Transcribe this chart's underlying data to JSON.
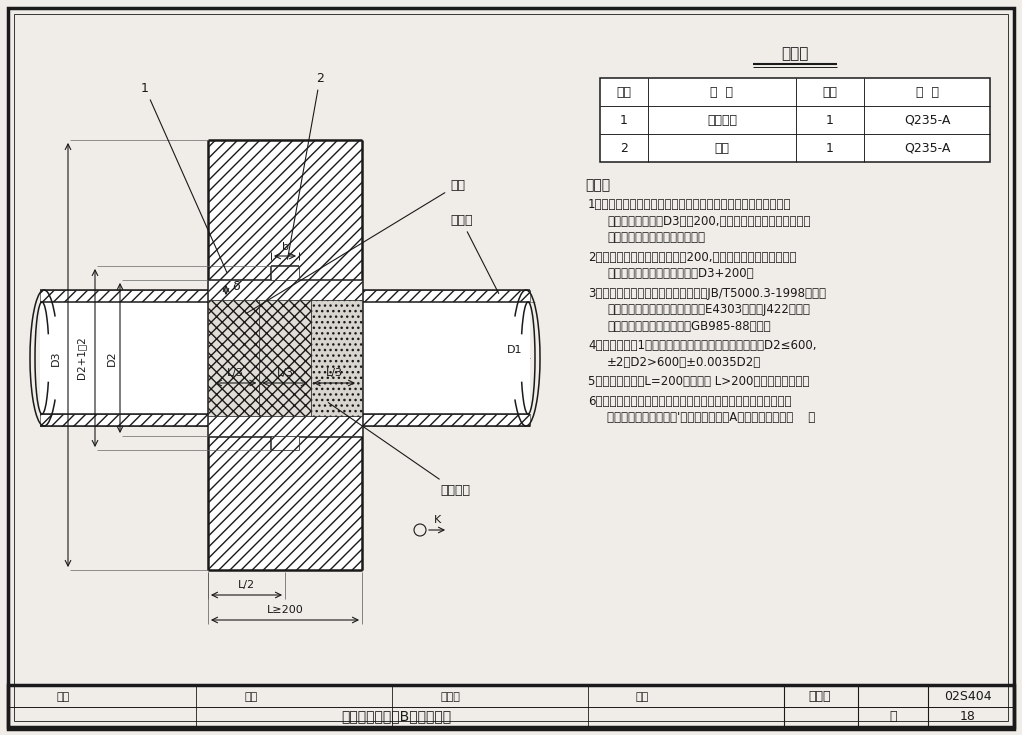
{
  "bg": "#f0ede8",
  "black": "#1a1a1a",
  "title": "刚性防水套管（B型）安装图",
  "atlas_no": "02S404",
  "page_no": "18",
  "mat_table_title": "材料表",
  "mat_headers": [
    "序号",
    "名  称",
    "数量",
    "材  料"
  ],
  "mat_rows": [
    [
      "1",
      "钢制套管",
      "1",
      "Q235-A"
    ],
    [
      "2",
      "翼环",
      "1",
      "Q235-A"
    ]
  ],
  "notes_title": "说明：",
  "note_items": [
    [
      "套管穿墙处如遇非混凝土墙壁时，应改用混凝土墙壁，其浇注",
      "围应比翼环直径（D3）大200,而且必须将套管一次浇固于墙",
      "内．套管内的填料应紧密捣实。"
    ],
    [
      "穿管处混凝土墙厚应不小于200,否则应使墙壁一边或两边加",
      "厚，加厚部分的直径至少应为D3+200。"
    ],
    [
      "焊接结构尺寸公差与形位公差按照JB/T5000.3-1998执行。",
      "焊接采用手工电弧焊，焊条型号E4303，牌号J422。焊缝",
      "坡口的基本形式与尺寸按照GB985-88执行。"
    ],
    [
      "当套管（件1）采用卷制成型时，周长允许偏差为：D2≤600,",
      "±2，D2>600，±0.0035D2。"
    ],
    [
      "套管的重量以L=200计算，当 L>200时，应另行计算。"
    ],
    [
      "当用于饮用水水池安装时，应在石棉水泥与水接触侧嵌填无毒",
      "密封膏，做法见本图集'刚性防水套管（A型）安装图（二）    。"
    ]
  ],
  "sign_labels": [
    "审核",
    "校对",
    "内容明",
    "设计"
  ]
}
